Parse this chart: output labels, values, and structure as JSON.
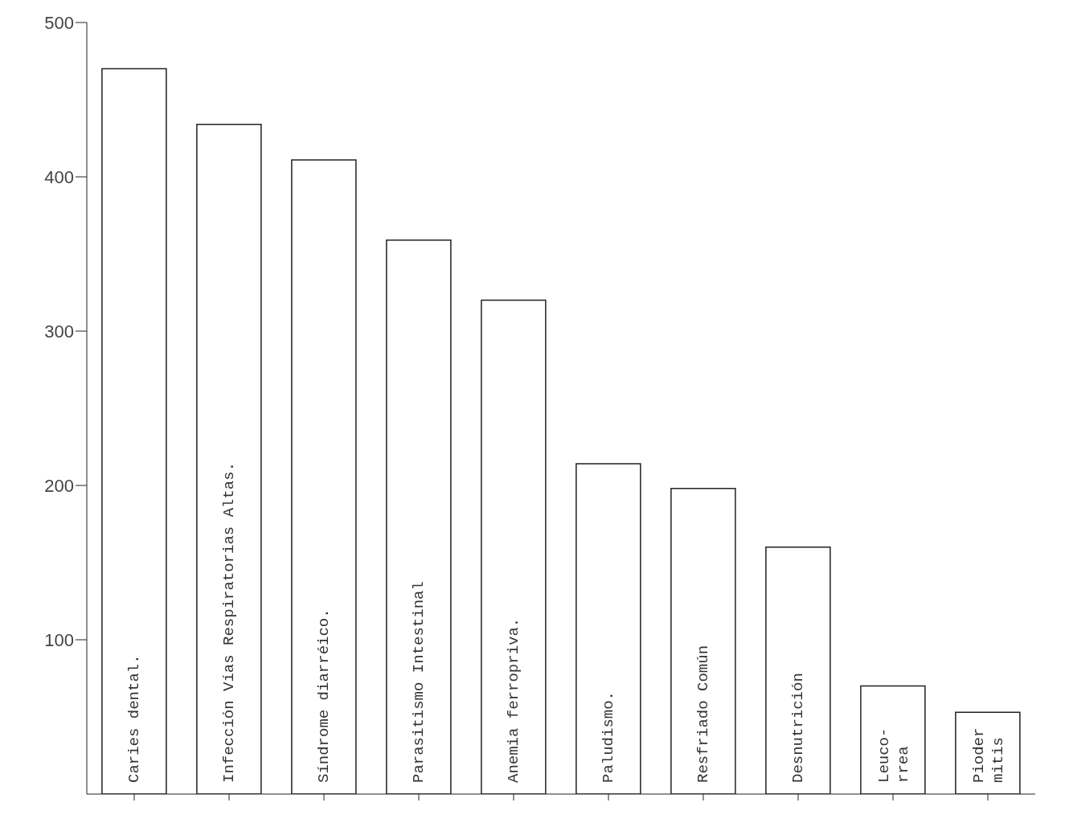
{
  "chart_data": {
    "type": "bar",
    "categories": [
      "Caries dental.",
      "Infección Vías Respiratorias Altas.",
      "Síndrome diarréico.",
      "Parasitismo Intestinal",
      "Anemia ferropriva.",
      "Paludismo.",
      "Resfriado Común",
      "Desnutrición",
      "Leuco-\nrrea",
      "Pioder\nmitis"
    ],
    "values": [
      470,
      434,
      411,
      359,
      320,
      214,
      198,
      160,
      70,
      53
    ],
    "color": "#ffffff",
    "ylim": [
      0,
      500
    ],
    "yticks": [
      100,
      200,
      300,
      400,
      500
    ],
    "grid": false
  }
}
